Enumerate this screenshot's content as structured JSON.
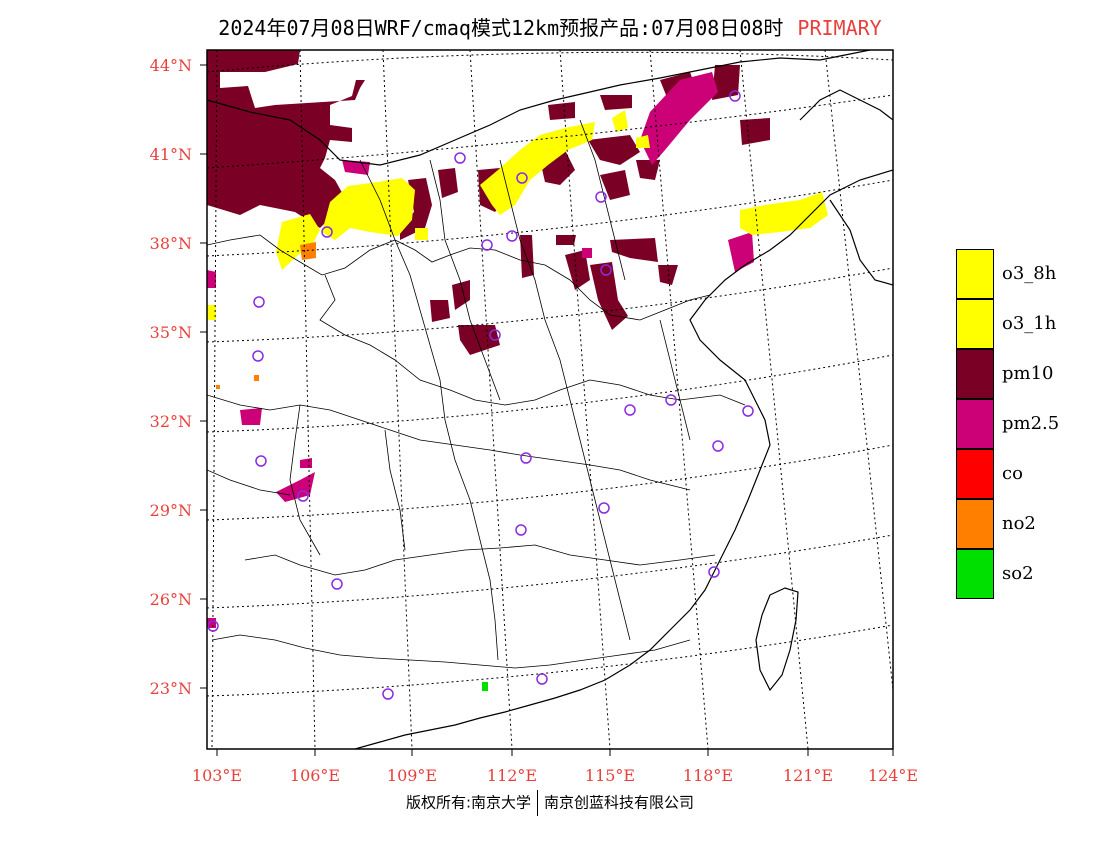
{
  "title": "2024年07月08日WRF/cmaq模式12km预报产品:07月08日08时",
  "title_tag": "PRIMARY",
  "colors": {
    "frame": "#000000",
    "axis_label": "#e8403c",
    "o3": "#ffff00",
    "pm10": "#7a0026",
    "pm25": "#cc0077",
    "co": "#ff0000",
    "no2": "#ff7f00",
    "so2": "#00e000",
    "station_circle": "#8a2be2"
  },
  "lat_labels": [
    "44°N",
    "41°N",
    "38°N",
    "35°N",
    "32°N",
    "29°N",
    "26°N",
    "23°N"
  ],
  "lon_labels": [
    "103°E",
    "106°E",
    "109°E",
    "112°E",
    "115°E",
    "118°E",
    "121°E",
    "124°E"
  ],
  "legend": [
    {
      "label": "o3_8h",
      "color": "#ffff00"
    },
    {
      "label": "o3_1h",
      "color": "#ffff00"
    },
    {
      "label": "pm10",
      "color": "#7a0026"
    },
    {
      "label": "pm2.5",
      "color": "#cc0077"
    },
    {
      "label": "co",
      "color": "#ff0000"
    },
    {
      "label": "no2",
      "color": "#ff7f00"
    },
    {
      "label": "so2",
      "color": "#00e000"
    }
  ],
  "footer": {
    "left": "版权所有:南京大学",
    "right": "南京创蓝科技有限公司"
  }
}
